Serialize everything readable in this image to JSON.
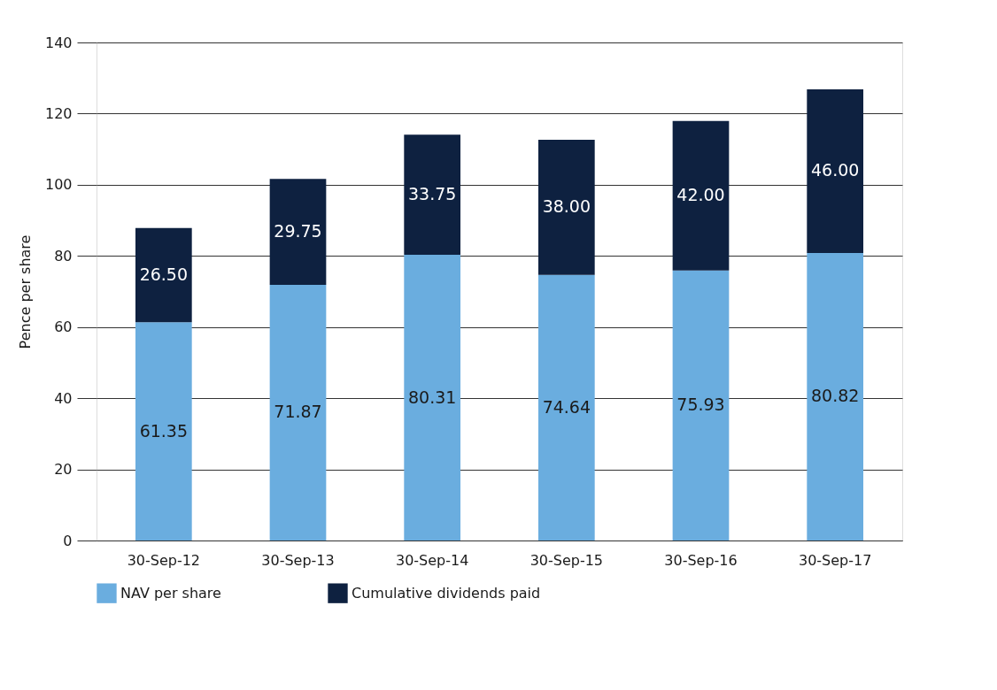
{
  "chart_data": {
    "type": "bar",
    "stacked": true,
    "ylabel": "Pence per share",
    "categories": [
      "30-Sep-12",
      "30-Sep-13",
      "30-Sep-14",
      "30-Sep-15",
      "30-Sep-16",
      "30-Sep-17"
    ],
    "series": [
      {
        "name": "NAV per share",
        "color": "#6aaddf",
        "values": [
          61.35,
          71.87,
          80.31,
          74.64,
          75.93,
          80.82
        ],
        "value_labels": [
          "61.35",
          "71.87",
          "80.31",
          "74.64",
          "75.93",
          "80.82"
        ]
      },
      {
        "name": "Cumulative dividends paid",
        "color": "#0e2140",
        "values": [
          26.5,
          29.75,
          33.75,
          38.0,
          42.0,
          46.0
        ],
        "value_labels": [
          "26.50",
          "29.75",
          "33.75",
          "38.00",
          "42.00",
          "46.00"
        ]
      }
    ],
    "ylim": [
      0,
      140
    ],
    "yticks": [
      0,
      20,
      40,
      60,
      80,
      100,
      120,
      140
    ],
    "grid": "y",
    "legend": "bottom"
  }
}
